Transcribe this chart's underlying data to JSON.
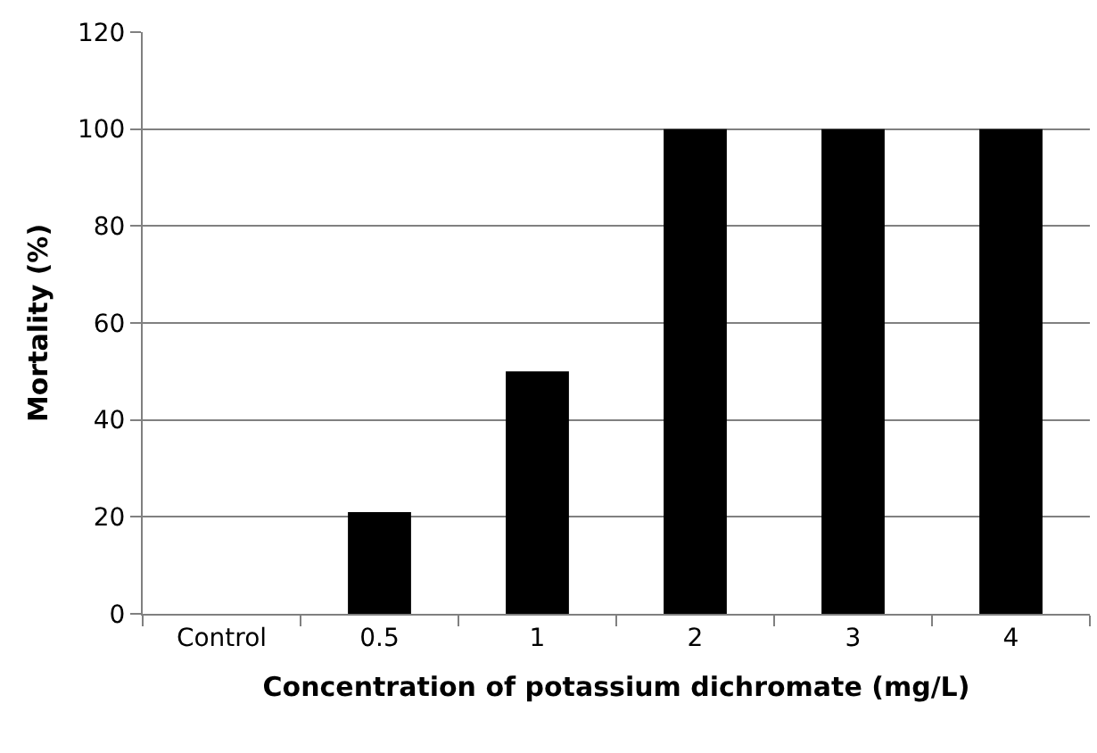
{
  "chart_data": {
    "type": "bar",
    "xlabel": "Concentration of potassium dichromate (mg/L)",
    "ylabel": "Mortality (%)",
    "categories": [
      "Control",
      "0.5",
      "1",
      "2",
      "3",
      "4"
    ],
    "values": [
      0,
      21,
      50,
      100,
      100,
      100
    ],
    "color": "#000000",
    "ylim": [
      0,
      120
    ],
    "yticks": [
      0,
      20,
      40,
      60,
      80,
      100,
      120
    ],
    "grid": "y"
  }
}
